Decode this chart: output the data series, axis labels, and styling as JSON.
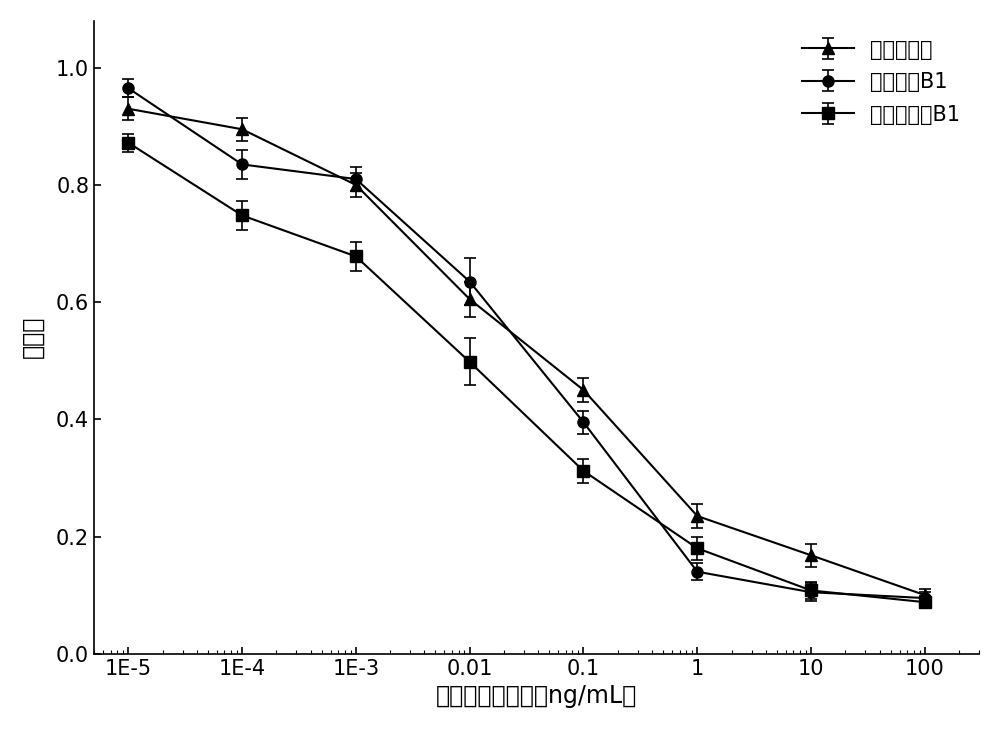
{
  "x_values": [
    1e-05,
    0.0001,
    0.001,
    0.01,
    0.1,
    1,
    10,
    100
  ],
  "x_labels": [
    "1E-5",
    "1E-4",
    "1E-3",
    "0.01",
    "0.1",
    "1",
    "10",
    "100"
  ],
  "series": [
    {
      "name": "赭曲霉毒素",
      "marker": "^",
      "color": "#000000",
      "y": [
        0.93,
        0.895,
        0.8,
        0.605,
        0.45,
        0.235,
        0.168,
        0.1
      ],
      "yerr": [
        0.02,
        0.02,
        0.02,
        0.03,
        0.02,
        0.02,
        0.02,
        0.01
      ]
    },
    {
      "name": "伏马毒素B1",
      "marker": "o",
      "color": "#000000",
      "y": [
        0.965,
        0.835,
        0.81,
        0.635,
        0.395,
        0.14,
        0.105,
        0.095
      ],
      "yerr": [
        0.015,
        0.025,
        0.02,
        0.04,
        0.02,
        0.015,
        0.015,
        0.01
      ]
    },
    {
      "name": "黄曲霉毒素B1",
      "marker": "s",
      "color": "#000000",
      "y": [
        0.872,
        0.748,
        0.678,
        0.498,
        0.312,
        0.18,
        0.108,
        0.088
      ],
      "yerr": [
        0.015,
        0.025,
        0.025,
        0.04,
        0.02,
        0.02,
        0.015,
        0.01
      ]
    }
  ],
  "xlabel": "毒素标准品浓度（ng/mL）",
  "ylabel": "抑制率",
  "ylim": [
    0.0,
    1.08
  ],
  "yticks": [
    0.0,
    0.2,
    0.4,
    0.6,
    0.8,
    1.0
  ],
  "background_color": "#ffffff",
  "line_width": 1.5,
  "marker_size": 8,
  "font_size_label": 17,
  "font_size_tick": 15,
  "font_size_legend": 15,
  "figsize": [
    10.0,
    7.29
  ],
  "dpi": 100
}
